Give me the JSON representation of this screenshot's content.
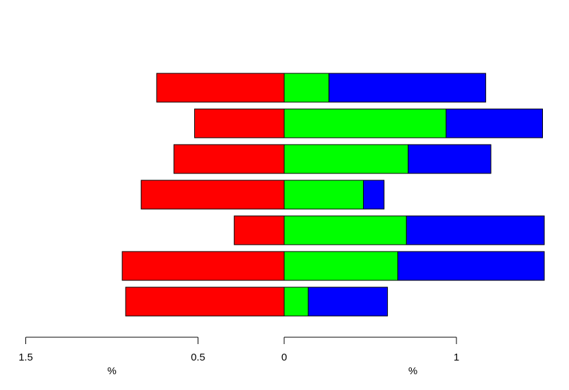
{
  "chart_data": {
    "type": "bar",
    "orientation": "horizontal",
    "stacking": "diverging",
    "colors": {
      "left": "#ff0000",
      "mid": "#00ff00",
      "right": "#0000ff",
      "outline": "#000000"
    },
    "rows": [
      {
        "left": 0.74,
        "mid": 0.26,
        "right": 0.91
      },
      {
        "left": 0.52,
        "mid": 0.94,
        "right": 0.56
      },
      {
        "left": 0.64,
        "mid": 0.72,
        "right": 0.48
      },
      {
        "left": 0.83,
        "mid": 0.46,
        "right": 0.12
      },
      {
        "left": 0.29,
        "mid": 0.71,
        "right": 0.8
      },
      {
        "left": 0.94,
        "mid": 0.66,
        "right": 0.85
      },
      {
        "left": 0.92,
        "mid": 0.14,
        "right": 0.46
      }
    ],
    "left_axis": {
      "ticks": [
        {
          "value": 1.5,
          "label": "1.5"
        },
        {
          "value": 0.5,
          "label": "0.5"
        }
      ],
      "unit": "%"
    },
    "right_axis": {
      "ticks": [
        {
          "value": 0,
          "label": "0"
        },
        {
          "value": 1,
          "label": "1"
        }
      ],
      "unit": "%"
    }
  }
}
